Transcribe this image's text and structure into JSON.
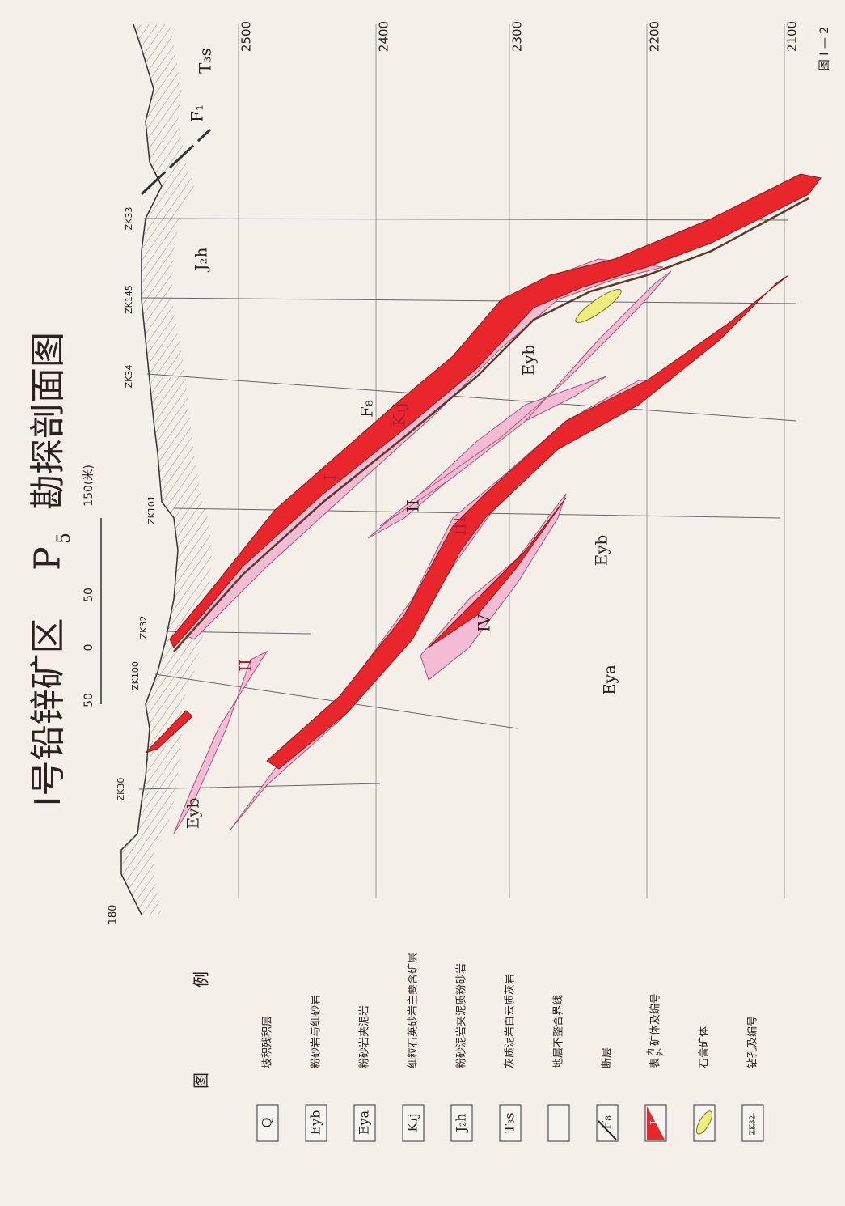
{
  "figure_number": "图 I — 2",
  "title": {
    "prefix": "I号铅锌矿区",
    "p": "P",
    "sub": "5",
    "suffix": "勘探剖面图"
  },
  "scale": {
    "labels": [
      "50",
      "0",
      "50",
      "150(米)"
    ]
  },
  "elevations": [
    "2500",
    "2400",
    "2300",
    "2200",
    "2100"
  ],
  "left_edge_label": "180",
  "drill_holes": [
    "ZK33",
    "ZK145",
    "ZK34",
    "ZK101",
    "ZK32",
    "ZK100",
    "ZK30"
  ],
  "section_labels": [
    "T₃s",
    "F₁",
    "J₂h",
    "F₈",
    "K₁j",
    "I",
    "II",
    "III",
    "IV",
    "Eyb",
    "Eyb",
    "Eya",
    "Eyb",
    "II"
  ],
  "legend": {
    "title": [
      "图",
      "例"
    ],
    "items": [
      {
        "symbol": "Q",
        "label": "坡积残积层"
      },
      {
        "symbol": "Eyb",
        "label": "粉砂岩与细砂岩"
      },
      {
        "symbol": "Eya",
        "label": "粉砂岩夹泥岩"
      },
      {
        "symbol": "K₁j",
        "label": "细粒石英砂岩主要含矿层"
      },
      {
        "symbol": "J₂h",
        "label": "粉砂泥岩夹泥质粉砂岩"
      },
      {
        "symbol": "T₃s",
        "label": "灰质泥岩白云质灰岩"
      },
      {
        "label": "地层不整合界线"
      },
      {
        "symbol": "F₈",
        "label": "断层"
      },
      {
        "symbol": "I",
        "label": {
          "prefix": "表",
          "upper": "内",
          "lower": "外",
          "suffix": "矿体及编号"
        }
      },
      {
        "label": "石膏矿体"
      },
      {
        "symbol": "ZK32",
        "label": "钻孔及编号"
      }
    ]
  }
}
